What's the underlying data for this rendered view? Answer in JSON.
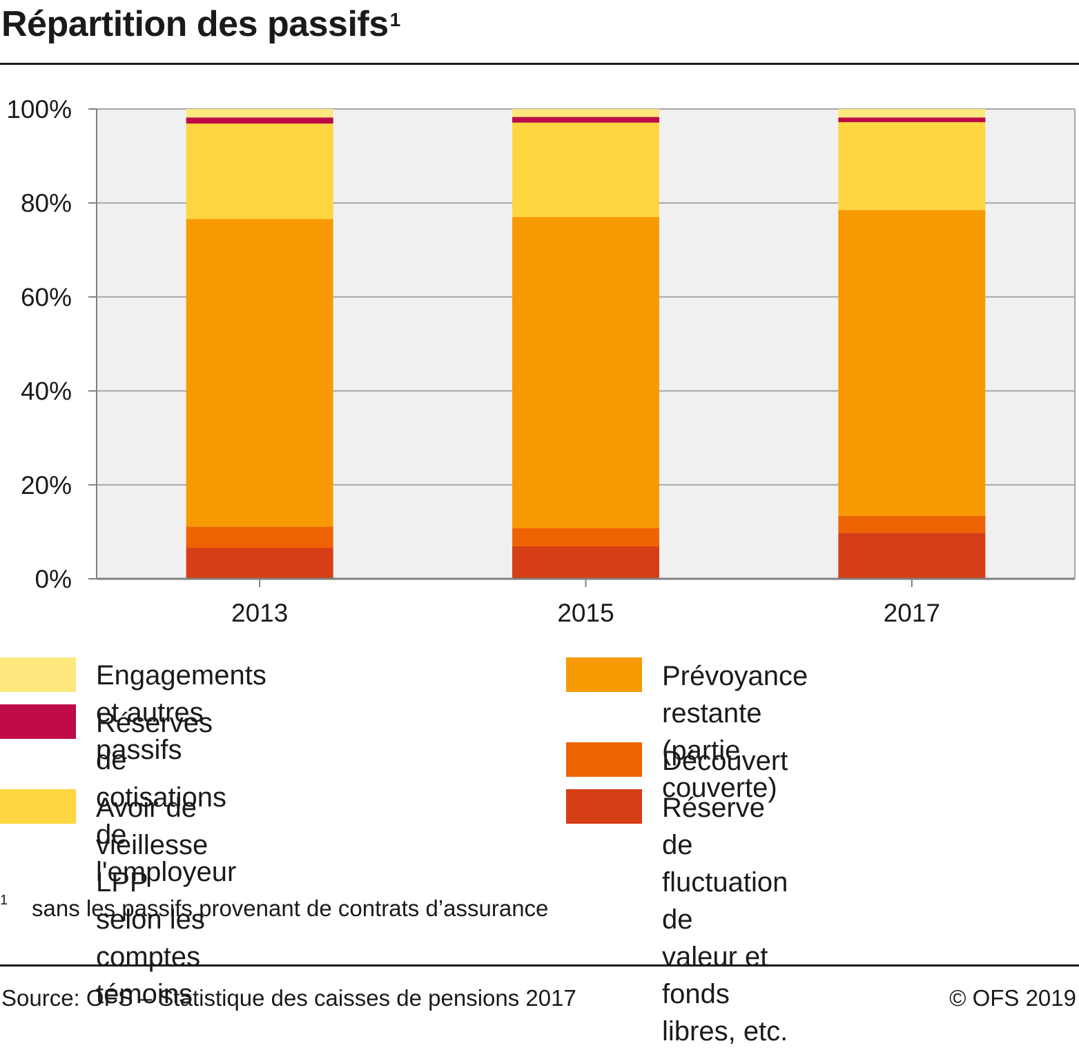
{
  "title": "Répartition des passifs",
  "title_footnote_marker": "1",
  "chart_data": {
    "type": "bar",
    "stacked": true,
    "categories": [
      "2013",
      "2015",
      "2017"
    ],
    "y_ticks": [
      "0%",
      "20%",
      "40%",
      "60%",
      "80%",
      "100%"
    ],
    "ylim": [
      0,
      100
    ],
    "grid": true,
    "series": [
      {
        "name": "Réserve de fluctuation de\nvaleur et fonds libres, etc.",
        "color": "#D63E15",
        "values": [
          6.6,
          6.9,
          9.8
        ]
      },
      {
        "name": "Découvert",
        "color": "#EE6303",
        "values": [
          4.5,
          3.9,
          3.6
        ]
      },
      {
        "name": "Prévoyance restante\n(partie couverte)",
        "color": "#F89A03",
        "values": [
          65.5,
          66.2,
          65.1
        ]
      },
      {
        "name": "Avoir de vieillesse LPP\nselon les comptes témoins",
        "color": "#FED642",
        "values": [
          20.3,
          20.1,
          18.7
        ]
      },
      {
        "name": "Réserves de cotisations\nde l'employeur",
        "color": "#BE0B45",
        "values": [
          1.3,
          1.2,
          1.0
        ]
      },
      {
        "name": "Engagements et autres passifs",
        "color": "#FEE77D",
        "values": [
          1.8,
          1.7,
          1.8
        ]
      }
    ]
  },
  "legend": [
    {
      "label": "Engagements et autres passifs",
      "color": "#FEE77D"
    },
    {
      "label": "Réserves de cotisations\nde l'employeur",
      "color": "#BE0B45"
    },
    {
      "label": "Avoir de vieillesse LPP\nselon les comptes témoins",
      "color": "#FED642"
    },
    {
      "label": "Prévoyance restante\n(partie couverte)",
      "color": "#F89A03"
    },
    {
      "label": "Découvert",
      "color": "#EE6303"
    },
    {
      "label": "Réserve de fluctuation de\nvaleur et fonds libres, etc.",
      "color": "#D63E15"
    }
  ],
  "footnote": {
    "marker": "1",
    "text": "sans les passifs provenant de contrats d’assurance"
  },
  "source": "Source: OFS – Statistique des caisses de pensions 2017",
  "copyright": "© OFS 2019",
  "colors": {
    "plot_background": "#F0F0F0",
    "grid": "#A6A6A6",
    "axis": "#7F7F7F",
    "rule": "#1A1A1A"
  }
}
